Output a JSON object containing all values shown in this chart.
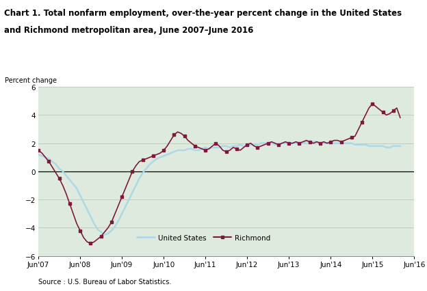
{
  "title_line1": "Chart 1. Total nonfarm employment, over-the-year percent change in the United States",
  "title_line2": "and Richmond metropolitan area, June 2007–June 2016",
  "ylabel": "Percent change",
  "source": "Source : U.S. Bureau of Labor Statistics.",
  "ylim": [
    -6.0,
    6.0
  ],
  "yticks": [
    -6.0,
    -4.0,
    -2.0,
    0.0,
    2.0,
    4.0,
    6.0
  ],
  "xtick_labels": [
    "Jun'07",
    "Jun'08",
    "Jun'09",
    "Jun'10",
    "Jun'11",
    "Jun'12",
    "Jun'13",
    "Jun'14",
    "Jun'15",
    "Jun'16"
  ],
  "us_color": "#add8e6",
  "richmond_color": "#7b1a3a",
  "us_label": "United States",
  "richmond_label": "Richmond",
  "background_color": "#deeade",
  "us_data": [
    1.2,
    1.1,
    1.0,
    0.9,
    0.7,
    0.5,
    0.2,
    0.0,
    -0.3,
    -0.6,
    -0.9,
    -1.2,
    -1.7,
    -2.2,
    -2.7,
    -3.2,
    -3.7,
    -4.1,
    -4.3,
    -4.5,
    -4.4,
    -4.2,
    -3.9,
    -3.5,
    -3.0,
    -2.5,
    -2.0,
    -1.5,
    -1.0,
    -0.5,
    -0.1,
    0.2,
    0.5,
    0.7,
    0.9,
    1.0,
    1.1,
    1.2,
    1.3,
    1.4,
    1.5,
    1.5,
    1.5,
    1.6,
    1.6,
    1.5,
    1.5,
    1.6,
    1.7,
    1.6,
    1.7,
    1.7,
    1.7,
    1.8,
    1.8,
    1.7,
    1.8,
    1.8,
    1.9,
    1.8,
    1.8,
    1.9,
    1.9,
    1.9,
    2.0,
    2.0,
    2.0,
    2.0,
    1.9,
    1.9,
    2.0,
    2.0,
    2.0,
    2.0,
    2.0,
    2.0,
    2.0,
    2.1,
    2.1,
    2.1,
    2.1,
    2.0,
    2.0,
    2.0,
    2.0,
    2.0,
    2.0,
    2.0,
    2.0,
    2.0,
    2.0,
    1.9,
    1.9,
    1.9,
    1.9,
    1.8,
    1.8,
    1.8,
    1.8,
    1.8,
    1.7,
    1.7,
    1.8,
    1.8,
    1.8
  ],
  "richmond_data": [
    1.5,
    1.3,
    1.0,
    0.7,
    0.3,
    -0.1,
    -0.5,
    -1.0,
    -1.6,
    -2.3,
    -3.0,
    -3.7,
    -4.2,
    -4.7,
    -5.0,
    -5.1,
    -5.0,
    -4.8,
    -4.6,
    -4.3,
    -4.0,
    -3.6,
    -3.0,
    -2.4,
    -1.8,
    -1.2,
    -0.6,
    0.0,
    0.4,
    0.7,
    0.8,
    0.9,
    1.0,
    1.1,
    1.2,
    1.3,
    1.5,
    1.8,
    2.2,
    2.6,
    2.8,
    2.7,
    2.5,
    2.2,
    2.0,
    1.8,
    1.7,
    1.6,
    1.5,
    1.6,
    1.8,
    2.0,
    1.8,
    1.5,
    1.4,
    1.5,
    1.7,
    1.6,
    1.5,
    1.7,
    1.9,
    2.0,
    1.8,
    1.7,
    1.8,
    1.9,
    2.0,
    2.1,
    2.0,
    1.9,
    2.0,
    2.1,
    2.0,
    2.0,
    2.1,
    2.0,
    2.1,
    2.2,
    2.1,
    2.0,
    2.1,
    2.0,
    2.1,
    2.0,
    2.1,
    2.2,
    2.2,
    2.1,
    2.2,
    2.3,
    2.4,
    2.5,
    3.0,
    3.5,
    4.0,
    4.5,
    4.8,
    4.6,
    4.4,
    4.2,
    4.0,
    4.1,
    4.3,
    4.5,
    3.8
  ]
}
